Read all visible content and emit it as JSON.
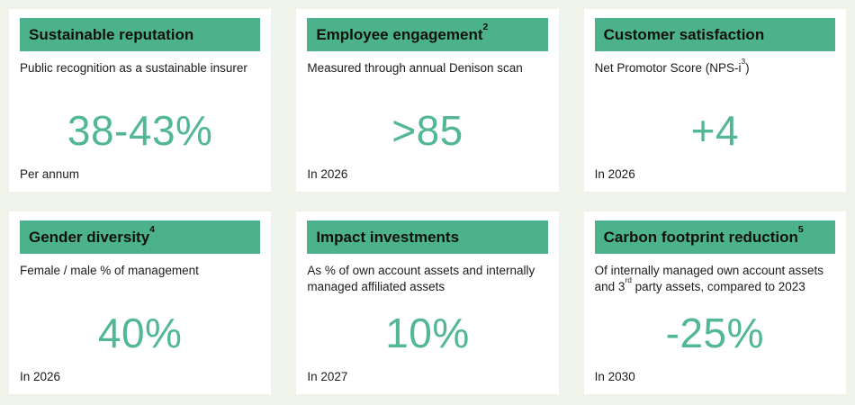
{
  "page": {
    "background_color": "#f0f3e9",
    "card_background": "#ffffff",
    "accent_green": "#4bb28c",
    "value_green": "#52b794"
  },
  "cards": [
    {
      "title": "Sustainable reputation",
      "title_sup": "",
      "desc_before": "Public recognition as a sustainable insurer",
      "desc_sup": "",
      "desc_after": "",
      "value": "38-43%",
      "timeframe": "Per annum"
    },
    {
      "title": "Employee engagement",
      "title_sup": "2",
      "desc_before": "Measured through annual Denison scan",
      "desc_sup": "",
      "desc_after": "",
      "value": ">85",
      "timeframe": "In 2026"
    },
    {
      "title": "Customer satisfaction",
      "title_sup": "",
      "desc_before": "Net Promotor Score (NPS-i",
      "desc_sup": "3",
      "desc_after": ")",
      "value": "+4",
      "timeframe": "In 2026"
    },
    {
      "title": "Gender diversity",
      "title_sup": "4",
      "desc_before": "Female / male % of management",
      "desc_sup": "",
      "desc_after": "",
      "value": "40%",
      "timeframe": "In 2026"
    },
    {
      "title": "Impact investments",
      "title_sup": "",
      "desc_before": "As % of own account assets and internally managed affiliated assets",
      "desc_sup": "",
      "desc_after": "",
      "value": "10%",
      "timeframe": "In 2027"
    },
    {
      "title": "Carbon footprint reduction",
      "title_sup": "5",
      "desc_before": "Of internally managed own account assets and 3",
      "desc_sup": "rd",
      "desc_after": " party assets, compared to 2023",
      "value": "-25%",
      "timeframe": "In 2030"
    }
  ]
}
